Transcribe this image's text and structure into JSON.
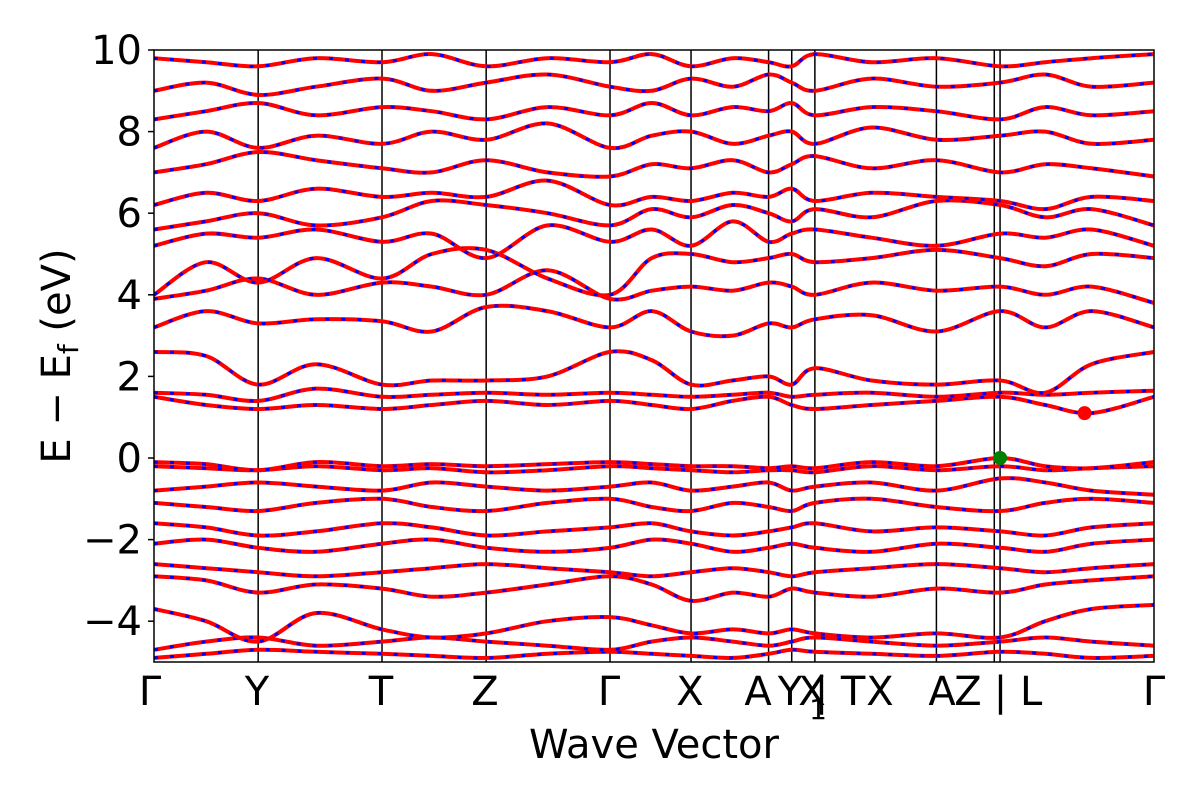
{
  "chart_data": {
    "type": "line",
    "xlabel": "Wave Vector",
    "ylabel": "E − E_f (eV)",
    "ylabel_main": "E − E",
    "ylabel_sub": "f",
    "ylabel_unit": " (eV)",
    "ylim": [
      -5,
      10
    ],
    "yticks": [
      -4,
      -2,
      0,
      2,
      4,
      6,
      8,
      10
    ],
    "ytick_labels": [
      "−4",
      "−2",
      "0",
      "2",
      "4",
      "6",
      "8",
      "10"
    ],
    "xlim": [
      0,
      10
    ],
    "high_symmetry_points": [
      {
        "label": "Γ",
        "x": 0.0
      },
      {
        "label": "Y",
        "x": 0.9
      },
      {
        "label": "T",
        "x": 1.97
      },
      {
        "label": "Z",
        "x": 2.87
      },
      {
        "label": "Γ",
        "x": 3.94
      },
      {
        "label": "X",
        "x": 4.64
      },
      {
        "label": "A",
        "x": 5.31
      },
      {
        "label": "Y",
        "x": 5.51
      },
      {
        "label": "X₁ | T",
        "x": 5.71
      },
      {
        "label": "X",
        "x": 6.76
      },
      {
        "label": "A",
        "x": 7.26
      },
      {
        "label": "Z | L",
        "x": 7.31
      },
      {
        "label": "Γ",
        "x": 8.64
      }
    ],
    "tick_text": [
      "Γ",
      "Y",
      "T",
      "Z",
      "Γ",
      "X",
      "A",
      "Y",
      "X",
      "1",
      "| T",
      "X",
      "A",
      "Z",
      "| L",
      "Γ"
    ],
    "vbm_point": {
      "x": 7.31,
      "y": 0.0,
      "color": "#008000"
    },
    "cbm_point": {
      "x": 8.04,
      "y": 1.1,
      "color": "#ff0000"
    },
    "bands_style": {
      "spin_up_color": "#ff0000",
      "spin_down_color": "#0000ff"
    },
    "bands": [
      {
        "k": [
          0,
          0.45,
          0.9,
          1.4,
          1.97,
          2.4,
          2.87,
          3.4,
          3.94,
          4.3,
          4.64,
          5.0,
          5.31,
          5.51,
          5.71,
          6.2,
          6.76,
          7.31,
          7.7,
          8.1,
          8.64
        ],
        "e": [
          -4.9,
          -4.8,
          -4.7,
          -4.75,
          -4.8,
          -4.85,
          -4.9,
          -4.8,
          -4.75,
          -4.8,
          -4.85,
          -4.9,
          -4.8,
          -4.7,
          -4.75,
          -4.8,
          -4.85,
          -4.75,
          -4.8,
          -4.9,
          -4.85
        ]
      },
      {
        "k": [
          0,
          0.45,
          0.9,
          1.4,
          1.97,
          2.4,
          2.87,
          3.4,
          3.94,
          4.3,
          4.64,
          5.0,
          5.31,
          5.51,
          5.71,
          6.2,
          6.76,
          7.31,
          7.7,
          8.1,
          8.64
        ],
        "e": [
          -4.7,
          -4.5,
          -4.4,
          -4.6,
          -4.5,
          -4.4,
          -4.5,
          -4.6,
          -4.7,
          -4.5,
          -4.4,
          -4.5,
          -4.6,
          -4.5,
          -4.4,
          -4.5,
          -4.6,
          -4.5,
          -4.4,
          -4.5,
          -4.6
        ]
      },
      {
        "k": [
          0,
          0.45,
          0.9,
          1.4,
          1.97,
          2.4,
          2.87,
          3.4,
          3.94,
          4.3,
          4.64,
          5.0,
          5.31,
          5.51,
          5.71,
          6.2,
          6.76,
          7.31,
          7.7,
          8.1,
          8.64
        ],
        "e": [
          -3.7,
          -4.0,
          -4.5,
          -3.8,
          -4.2,
          -4.4,
          -4.3,
          -4.0,
          -3.9,
          -4.1,
          -4.3,
          -4.2,
          -4.3,
          -4.2,
          -4.3,
          -4.4,
          -4.3,
          -4.4,
          -4.0,
          -3.7,
          -3.6
        ]
      },
      {
        "k": [
          0,
          0.45,
          0.9,
          1.4,
          1.97,
          2.4,
          2.87,
          3.4,
          3.94,
          4.3,
          4.64,
          5.0,
          5.31,
          5.51,
          5.71,
          6.2,
          6.76,
          7.31,
          7.7,
          8.1,
          8.64
        ],
        "e": [
          -2.9,
          -3.0,
          -3.3,
          -3.1,
          -3.2,
          -3.4,
          -3.3,
          -3.1,
          -2.9,
          -3.1,
          -3.5,
          -3.3,
          -3.4,
          -3.2,
          -3.3,
          -3.4,
          -3.2,
          -3.3,
          -3.1,
          -3.0,
          -2.9
        ]
      },
      {
        "k": [
          0,
          0.45,
          0.9,
          1.4,
          1.97,
          2.4,
          2.87,
          3.4,
          3.94,
          4.3,
          4.64,
          5.0,
          5.31,
          5.51,
          5.71,
          6.2,
          6.76,
          7.31,
          7.7,
          8.1,
          8.64
        ],
        "e": [
          -2.6,
          -2.7,
          -2.8,
          -2.9,
          -2.8,
          -2.7,
          -2.6,
          -2.7,
          -2.8,
          -2.9,
          -2.8,
          -2.7,
          -2.8,
          -2.9,
          -2.8,
          -2.7,
          -2.6,
          -2.7,
          -2.8,
          -2.7,
          -2.6
        ]
      },
      {
        "k": [
          0,
          0.45,
          0.9,
          1.4,
          1.97,
          2.4,
          2.87,
          3.4,
          3.94,
          4.3,
          4.64,
          5.0,
          5.31,
          5.51,
          5.71,
          6.2,
          6.76,
          7.31,
          7.7,
          8.1,
          8.64
        ],
        "e": [
          -2.1,
          -2.0,
          -2.2,
          -2.3,
          -2.1,
          -2.0,
          -2.2,
          -2.3,
          -2.2,
          -2.0,
          -2.1,
          -2.3,
          -2.2,
          -2.1,
          -2.2,
          -2.3,
          -2.1,
          -2.2,
          -2.3,
          -2.1,
          -2.0
        ]
      },
      {
        "k": [
          0,
          0.45,
          0.9,
          1.4,
          1.97,
          2.4,
          2.87,
          3.4,
          3.94,
          4.3,
          4.64,
          5.0,
          5.31,
          5.51,
          5.71,
          6.2,
          6.76,
          7.31,
          7.7,
          8.1,
          8.64
        ],
        "e": [
          -1.6,
          -1.7,
          -1.9,
          -1.8,
          -1.6,
          -1.7,
          -1.9,
          -1.8,
          -1.7,
          -1.6,
          -1.8,
          -1.9,
          -1.8,
          -1.7,
          -1.6,
          -1.8,
          -1.7,
          -1.8,
          -1.9,
          -1.7,
          -1.6
        ]
      },
      {
        "k": [
          0,
          0.45,
          0.9,
          1.4,
          1.97,
          2.4,
          2.87,
          3.4,
          3.94,
          4.3,
          4.64,
          5.0,
          5.31,
          5.51,
          5.71,
          6.2,
          6.76,
          7.31,
          7.7,
          8.1,
          8.64
        ],
        "e": [
          -1.1,
          -1.2,
          -1.3,
          -1.1,
          -1.0,
          -1.2,
          -1.3,
          -1.1,
          -1.0,
          -1.2,
          -1.3,
          -1.1,
          -1.2,
          -1.3,
          -1.1,
          -1.0,
          -1.2,
          -1.3,
          -1.1,
          -1.0,
          -1.1
        ]
      },
      {
        "k": [
          0,
          0.45,
          0.9,
          1.4,
          1.97,
          2.4,
          2.87,
          3.4,
          3.94,
          4.3,
          4.64,
          5.0,
          5.31,
          5.51,
          5.71,
          6.2,
          6.76,
          7.31,
          7.7,
          8.1,
          8.64
        ],
        "e": [
          -0.8,
          -0.7,
          -0.6,
          -0.7,
          -0.8,
          -0.6,
          -0.7,
          -0.8,
          -0.7,
          -0.6,
          -0.8,
          -0.7,
          -0.6,
          -0.8,
          -0.7,
          -0.6,
          -0.8,
          -0.5,
          -0.6,
          -0.8,
          -0.9
        ]
      },
      {
        "k": [
          0,
          0.45,
          0.9,
          1.4,
          1.97,
          2.4,
          2.87,
          3.4,
          3.94,
          4.3,
          4.64,
          5.0,
          5.31,
          5.51,
          5.71,
          6.2,
          6.76,
          7.31,
          7.7,
          8.1,
          8.64
        ],
        "e": [
          -0.2,
          -0.25,
          -0.3,
          -0.2,
          -0.3,
          -0.25,
          -0.35,
          -0.3,
          -0.2,
          -0.25,
          -0.3,
          -0.35,
          -0.3,
          -0.3,
          -0.35,
          -0.2,
          -0.3,
          -0.2,
          -0.3,
          -0.25,
          -0.2
        ]
      },
      {
        "k": [
          0,
          0.45,
          0.9,
          1.4,
          1.97,
          2.4,
          2.87,
          3.4,
          3.94,
          4.3,
          4.64,
          5.0,
          5.31,
          5.51,
          5.71,
          6.2,
          6.76,
          7.31,
          7.7,
          8.1,
          8.64
        ],
        "e": [
          -0.1,
          -0.15,
          -0.3,
          -0.1,
          -0.2,
          -0.15,
          -0.2,
          -0.15,
          -0.1,
          -0.15,
          -0.2,
          -0.2,
          -0.25,
          -0.2,
          -0.25,
          -0.1,
          -0.2,
          0.0,
          -0.2,
          -0.25,
          -0.1
        ]
      },
      {
        "k": [
          0,
          0.45,
          0.9,
          1.4,
          1.97,
          2.4,
          2.87,
          3.4,
          3.94,
          4.3,
          4.64,
          5.0,
          5.31,
          5.51,
          5.71,
          6.2,
          6.76,
          7.31,
          7.7,
          8.1,
          8.64
        ],
        "e": [
          1.5,
          1.3,
          1.2,
          1.3,
          1.2,
          1.3,
          1.4,
          1.3,
          1.4,
          1.3,
          1.2,
          1.4,
          1.5,
          1.3,
          1.2,
          1.3,
          1.4,
          1.5,
          1.3,
          1.1,
          1.5
        ]
      },
      {
        "k": [
          0,
          0.45,
          0.9,
          1.4,
          1.97,
          2.4,
          2.87,
          3.4,
          3.94,
          4.3,
          4.64,
          5.0,
          5.31,
          5.51,
          5.71,
          6.2,
          6.76,
          7.31,
          7.7,
          8.1,
          8.64
        ],
        "e": [
          1.6,
          1.55,
          1.4,
          1.7,
          1.5,
          1.55,
          1.6,
          1.55,
          1.6,
          1.55,
          1.5,
          1.55,
          1.6,
          1.5,
          1.55,
          1.6,
          1.5,
          1.6,
          1.55,
          1.6,
          1.65
        ]
      },
      {
        "k": [
          0,
          0.45,
          0.9,
          1.4,
          1.97,
          2.4,
          2.87,
          3.4,
          3.94,
          4.3,
          4.64,
          5.0,
          5.31,
          5.51,
          5.71,
          6.2,
          6.76,
          7.31,
          7.7,
          8.1,
          8.64
        ],
        "e": [
          2.6,
          2.5,
          1.8,
          2.3,
          1.8,
          1.9,
          1.9,
          2.0,
          2.6,
          2.4,
          1.8,
          1.9,
          2.0,
          1.8,
          2.2,
          1.9,
          1.8,
          1.9,
          1.6,
          2.3,
          2.6
        ]
      },
      {
        "k": [
          0,
          0.45,
          0.9,
          1.4,
          1.97,
          2.4,
          2.87,
          3.4,
          3.94,
          4.3,
          4.64,
          5.0,
          5.31,
          5.51,
          5.71,
          6.2,
          6.76,
          7.31,
          7.7,
          8.1,
          8.64
        ],
        "e": [
          3.2,
          3.6,
          3.3,
          3.4,
          3.35,
          3.1,
          3.7,
          3.6,
          3.2,
          3.6,
          3.1,
          3.0,
          3.3,
          3.2,
          3.4,
          3.5,
          3.1,
          3.6,
          3.2,
          3.6,
          3.2
        ]
      },
      {
        "k": [
          0,
          0.45,
          0.9,
          1.4,
          1.97,
          2.4,
          2.87,
          3.4,
          3.94,
          4.3,
          4.64,
          5.0,
          5.31,
          5.51,
          5.71,
          6.2,
          6.76,
          7.31,
          7.7,
          8.1,
          8.64
        ],
        "e": [
          3.9,
          4.1,
          4.4,
          4.0,
          4.3,
          4.2,
          4.0,
          4.6,
          3.9,
          4.1,
          4.2,
          4.1,
          4.3,
          4.2,
          4.0,
          4.3,
          4.1,
          4.2,
          4.0,
          4.2,
          3.8
        ]
      },
      {
        "k": [
          0,
          0.45,
          0.9,
          1.4,
          1.97,
          2.4,
          2.87,
          3.4,
          3.94,
          4.3,
          4.64,
          5.0,
          5.31,
          5.51,
          5.71,
          6.2,
          6.76,
          7.31,
          7.7,
          8.1,
          8.64
        ],
        "e": [
          4.0,
          4.8,
          4.3,
          4.9,
          4.4,
          5.0,
          5.1,
          4.4,
          4.0,
          4.9,
          5.0,
          4.8,
          4.9,
          5.0,
          4.8,
          4.9,
          5.1,
          4.9,
          4.7,
          5.0,
          4.9
        ]
      },
      {
        "k": [
          0,
          0.45,
          0.9,
          1.4,
          1.97,
          2.4,
          2.87,
          3.4,
          3.94,
          4.3,
          4.64,
          5.0,
          5.31,
          5.51,
          5.71,
          6.2,
          6.76,
          7.31,
          7.7,
          8.1,
          8.64
        ],
        "e": [
          5.2,
          5.5,
          5.4,
          5.6,
          5.3,
          5.5,
          4.9,
          5.7,
          5.3,
          5.6,
          5.2,
          5.8,
          5.3,
          5.5,
          5.6,
          5.4,
          5.2,
          5.5,
          5.4,
          5.6,
          5.2
        ]
      },
      {
        "k": [
          0,
          0.45,
          0.9,
          1.4,
          1.97,
          2.4,
          2.87,
          3.4,
          3.94,
          4.3,
          4.64,
          5.0,
          5.31,
          5.51,
          5.71,
          6.2,
          6.76,
          7.31,
          7.7,
          8.1,
          8.64
        ],
        "e": [
          5.6,
          5.8,
          6.0,
          5.7,
          5.9,
          6.3,
          6.2,
          6.0,
          5.7,
          6.1,
          5.9,
          6.2,
          6.0,
          5.8,
          6.1,
          5.9,
          6.3,
          6.2,
          5.9,
          6.1,
          5.7
        ]
      },
      {
        "k": [
          0,
          0.45,
          0.9,
          1.4,
          1.97,
          2.4,
          2.87,
          3.4,
          3.94,
          4.3,
          4.64,
          5.0,
          5.31,
          5.51,
          5.71,
          6.2,
          6.76,
          7.31,
          7.7,
          8.1,
          8.64
        ],
        "e": [
          6.2,
          6.5,
          6.3,
          6.6,
          6.4,
          6.5,
          6.4,
          6.8,
          6.2,
          6.4,
          6.3,
          6.5,
          6.4,
          6.6,
          6.3,
          6.5,
          6.4,
          6.3,
          6.1,
          6.4,
          6.3
        ]
      },
      {
        "k": [
          0,
          0.45,
          0.9,
          1.4,
          1.97,
          2.4,
          2.87,
          3.4,
          3.94,
          4.3,
          4.64,
          5.0,
          5.31,
          5.51,
          5.71,
          6.2,
          6.76,
          7.31,
          7.7,
          8.1,
          8.64
        ],
        "e": [
          7.0,
          7.2,
          7.5,
          7.3,
          7.1,
          7.0,
          7.3,
          7.0,
          6.9,
          7.2,
          7.1,
          7.3,
          7.0,
          7.2,
          7.4,
          7.1,
          7.3,
          7.0,
          7.2,
          7.1,
          6.9
        ]
      },
      {
        "k": [
          0,
          0.45,
          0.9,
          1.4,
          1.97,
          2.4,
          2.87,
          3.4,
          3.94,
          4.3,
          4.64,
          5.0,
          5.31,
          5.51,
          5.71,
          6.2,
          6.76,
          7.31,
          7.7,
          8.1,
          8.64
        ],
        "e": [
          7.6,
          8.0,
          7.6,
          7.9,
          7.7,
          8.0,
          7.8,
          8.2,
          7.6,
          7.9,
          8.0,
          7.7,
          7.9,
          8.0,
          7.7,
          8.1,
          7.8,
          7.9,
          8.0,
          7.7,
          7.8
        ]
      },
      {
        "k": [
          0,
          0.45,
          0.9,
          1.4,
          1.97,
          2.4,
          2.87,
          3.4,
          3.94,
          4.3,
          4.64,
          5.0,
          5.31,
          5.51,
          5.71,
          6.2,
          6.76,
          7.31,
          7.7,
          8.1,
          8.64
        ],
        "e": [
          8.3,
          8.5,
          8.7,
          8.4,
          8.6,
          8.5,
          8.3,
          8.6,
          8.4,
          8.7,
          8.4,
          8.6,
          8.5,
          8.7,
          8.4,
          8.6,
          8.5,
          8.3,
          8.6,
          8.4,
          8.5
        ]
      },
      {
        "k": [
          0,
          0.45,
          0.9,
          1.4,
          1.97,
          2.4,
          2.87,
          3.4,
          3.94,
          4.3,
          4.64,
          5.0,
          5.31,
          5.51,
          5.71,
          6.2,
          6.76,
          7.31,
          7.7,
          8.1,
          8.64
        ],
        "e": [
          9.0,
          9.2,
          8.9,
          9.1,
          9.3,
          9.0,
          9.2,
          9.4,
          9.1,
          9.0,
          9.3,
          9.1,
          9.4,
          9.2,
          9.0,
          9.3,
          9.1,
          9.2,
          9.4,
          9.1,
          9.2
        ]
      },
      {
        "k": [
          0,
          0.45,
          0.9,
          1.4,
          1.97,
          2.4,
          2.87,
          3.4,
          3.94,
          4.3,
          4.64,
          5.0,
          5.31,
          5.51,
          5.71,
          6.2,
          6.76,
          7.31,
          7.7,
          8.1,
          8.64
        ],
        "e": [
          9.8,
          9.7,
          9.6,
          9.8,
          9.7,
          9.9,
          9.6,
          9.8,
          9.7,
          9.9,
          9.6,
          9.8,
          9.7,
          9.6,
          9.9,
          9.7,
          9.8,
          9.6,
          9.7,
          9.8,
          9.9
        ]
      }
    ]
  }
}
